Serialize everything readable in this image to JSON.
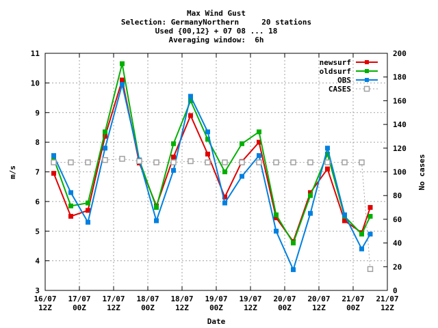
{
  "title_lines": [
    "Max Wind Gust",
    "Selection: GermanyNorthern     20 stations",
    "Used {00,12} + 07 08 ... 18",
    "Averaging window:  6h"
  ],
  "chart_data": {
    "type": "line",
    "xlabel": "Date",
    "ylabel": "m/s",
    "y2label": "No cases",
    "ylim": [
      3,
      11
    ],
    "y2lim": [
      0,
      200
    ],
    "yticks": [
      3,
      4,
      5,
      6,
      7,
      8,
      9,
      10,
      11
    ],
    "y2ticks": [
      0,
      20,
      40,
      60,
      80,
      100,
      120,
      140,
      160,
      180,
      200
    ],
    "xlim": [
      0,
      40
    ],
    "xticks": [
      {
        "t": 0,
        "l1": "16/07",
        "l2": "12Z"
      },
      {
        "t": 4,
        "l1": "17/07",
        "l2": "00Z"
      },
      {
        "t": 8,
        "l1": "17/07",
        "l2": "12Z"
      },
      {
        "t": 12,
        "l1": "18/07",
        "l2": "00Z"
      },
      {
        "t": 16,
        "l1": "18/07",
        "l2": "12Z"
      },
      {
        "t": 20,
        "l1": "19/07",
        "l2": "00Z"
      },
      {
        "t": 24,
        "l1": "19/07",
        "l2": "12Z"
      },
      {
        "t": 28,
        "l1": "20/07",
        "l2": "00Z"
      },
      {
        "t": 32,
        "l1": "20/07",
        "l2": "12Z"
      },
      {
        "t": 36,
        "l1": "21/07",
        "l2": "00Z"
      },
      {
        "t": 40,
        "l1": "21/07",
        "l2": "12Z"
      }
    ],
    "x": [
      1,
      3,
      5,
      7,
      9,
      11,
      13,
      15,
      17,
      19,
      21,
      23,
      25,
      27,
      29,
      31,
      33,
      35,
      37,
      38
    ],
    "grid": true,
    "legend_position": "top-right",
    "series": [
      {
        "name": "newsurf",
        "color": "#e00000",
        "marker": "square",
        "axis": "y",
        "values": [
          6.95,
          5.5,
          5.7,
          8.2,
          10.1,
          7.3,
          5.85,
          7.5,
          8.9,
          7.6,
          6.15,
          7.35,
          8.0,
          5.45,
          4.65,
          6.3,
          7.1,
          5.35,
          4.95,
          5.8
        ]
      },
      {
        "name": "oldsurf",
        "color": "#00b000",
        "marker": "square",
        "axis": "y",
        "values": [
          7.45,
          5.85,
          5.95,
          8.35,
          10.65,
          7.4,
          5.8,
          7.95,
          9.4,
          8.1,
          7.0,
          7.95,
          8.35,
          5.55,
          4.6,
          6.2,
          7.6,
          5.5,
          4.9,
          5.5
        ]
      },
      {
        "name": "OBS",
        "color": "#0080e0",
        "marker": "square",
        "axis": "y",
        "values": [
          7.55,
          6.3,
          5.3,
          7.8,
          9.95,
          7.4,
          5.35,
          7.05,
          9.55,
          8.35,
          5.95,
          6.85,
          7.55,
          5.0,
          3.7,
          5.6,
          7.8,
          5.55,
          4.4,
          4.9
        ]
      },
      {
        "name": "CASES",
        "color": "#a0a0a0",
        "marker": "open-square",
        "dashed": true,
        "axis": "y2",
        "values": [
          108,
          108,
          108,
          110,
          111,
          109,
          108,
          108,
          109,
          108,
          108,
          108,
          108,
          108,
          108,
          108,
          108,
          108,
          108,
          18
        ]
      }
    ]
  }
}
